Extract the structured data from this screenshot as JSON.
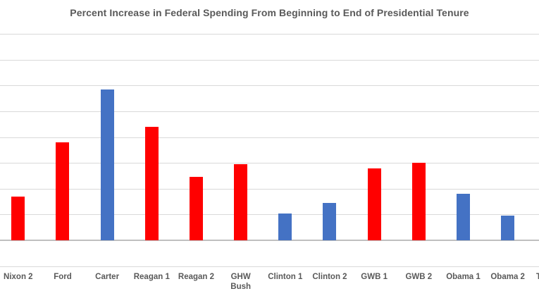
{
  "title": "Percent Increase in Federal Spending From Beginning to End of Presidential Tenure",
  "colors": {
    "republican_bar": "#FF0000",
    "democrat_bar": "#4472C4",
    "gridline": "#D9D9D9",
    "axis_line": "#BFBFBF",
    "text": "#595959",
    "background": "#FFFFFF"
  },
  "chart_data": {
    "type": "bar",
    "title": "Percent Increase in Federal Spending From Beginning to End of Presidential Tenure",
    "categories": [
      "Nixon 2",
      "Ford",
      "Carter",
      "Reagan 1",
      "Reagan 2",
      "GHW\nBush",
      "Clinton 1",
      "Clinton 2",
      "GWB 1",
      "GWB 2",
      "Obama 1",
      "Obama 2"
    ],
    "values": [
      17,
      38,
      58.5,
      44,
      24.5,
      29.5,
      10.5,
      14.5,
      28,
      30,
      18,
      9.5
    ],
    "parties": [
      "R",
      "R",
      "D",
      "R",
      "R",
      "R",
      "D",
      "D",
      "R",
      "R",
      "D",
      "D"
    ],
    "xlabel": "",
    "ylabel": "",
    "ylim": [
      -10,
      80
    ],
    "gridline_interval": 10,
    "grid": true,
    "legend": false,
    "y_axis_tick_labels_visible": false,
    "clipped_next_label": "T"
  }
}
